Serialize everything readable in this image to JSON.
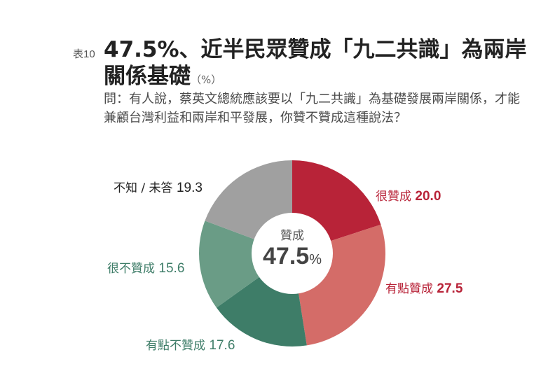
{
  "header": {
    "table_no": "表10",
    "title_main": "47.5%、近半民眾贊成「九二共識」為兩岸關係基礎",
    "title_unit": "（%）",
    "question": "問：有人說，蔡英文總統應該要以「九二共識」為基礎發展兩岸關係，才能兼顧台灣利益和兩岸和平發展，你贊不贊成這種說法？"
  },
  "center": {
    "title": "贊成",
    "value": "47.5",
    "unit": "%"
  },
  "labels": [
    {
      "text": "很贊成",
      "value": "20.0",
      "color": "#b82338"
    },
    {
      "text": "有點贊成",
      "value": "27.5",
      "color": "#b82338"
    },
    {
      "text": "有點不贊成",
      "value": "17.6",
      "color": "#3e7d68"
    },
    {
      "text": "很不贊成",
      "value": "15.6",
      "color": "#3e7d68"
    },
    {
      "text": "不知 / 未答",
      "value": "19.3",
      "color": "#222222"
    }
  ],
  "chart_data": {
    "type": "pie",
    "variant": "donut",
    "title": "47.5%、近半民眾贊成「九二共識」為兩岸關係基礎（%）",
    "subtitle": "問：有人說，蔡英文總統應該要以「九二共識」為基礎發展兩岸關係，才能兼顧台灣利益和兩岸和平發展，你贊不贊成這種說法？",
    "unit": "%",
    "start_angle": "12 o'clock, clockwise",
    "categories": [
      "很贊成",
      "有點贊成",
      "有點不贊成",
      "很不贊成",
      "不知 / 未答"
    ],
    "values": [
      20.0,
      27.5,
      17.6,
      15.6,
      19.3
    ],
    "colors": [
      "#b82338",
      "#d46c68",
      "#3e7d68",
      "#6a9c86",
      "#a0a0a0"
    ],
    "center_annotation": {
      "label": "贊成",
      "value": 47.5,
      "unit": "%"
    },
    "legend": "none (direct labels)"
  }
}
